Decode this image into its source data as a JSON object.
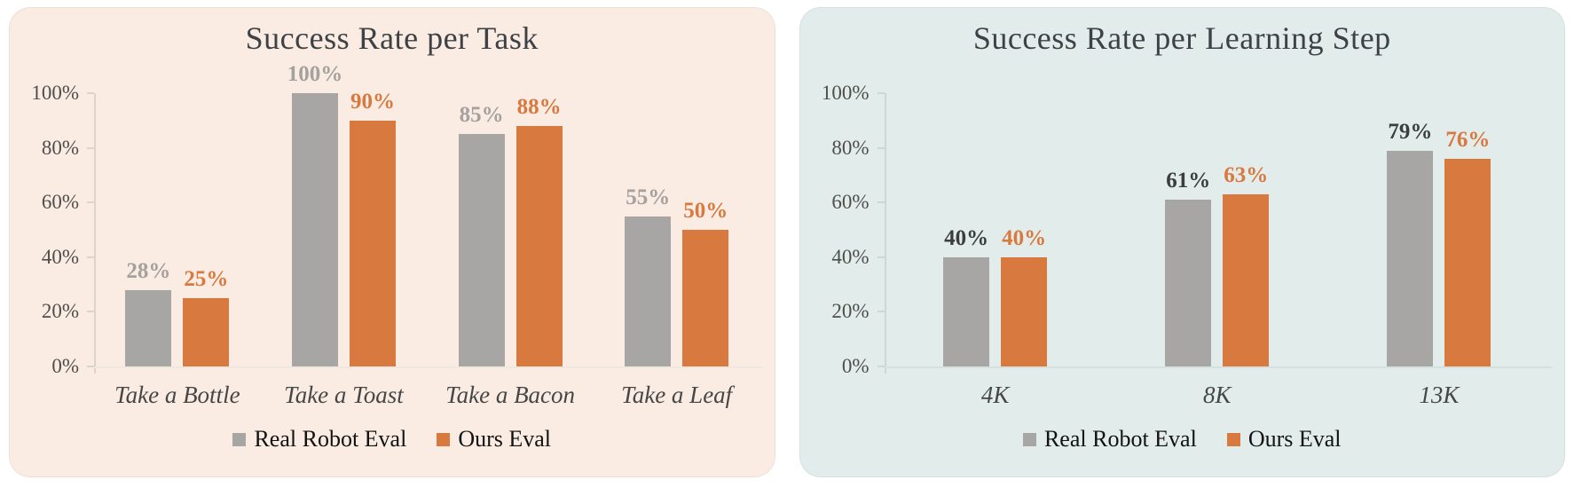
{
  "chart_data": [
    {
      "name": "success-rate-per-task",
      "type": "bar",
      "title": "Success Rate per Task",
      "panel_bg": "#FAECE3",
      "axis_color": "#DBD4CE",
      "baseline_color": "#EFE8E1",
      "categories": [
        "Take a Bottle",
        "Take a Toast",
        "Take a Bacon",
        "Take a Leaf"
      ],
      "series": [
        {
          "name": "Real Robot Eval",
          "values": [
            28,
            100,
            85,
            55
          ],
          "bar_color": "#A8A6A5",
          "label_color": "#A5A19E"
        },
        {
          "name": "Ours Eval",
          "values": [
            25,
            90,
            88,
            50
          ],
          "bar_color": "#D8793F",
          "label_color": "#D8793F"
        }
      ],
      "value_suffix": "%",
      "ylim": [
        0,
        100
      ],
      "y_tick_step": 20,
      "y_tick_labels": [
        "0%",
        "20%",
        "40%",
        "60%",
        "80%",
        "100%"
      ],
      "grid": false,
      "legend_position": "bottom",
      "legend": [
        {
          "label": "Real Robot Eval",
          "color": "#A8A6A5"
        },
        {
          "label": "Ours Eval",
          "color": "#D8793F"
        }
      ]
    },
    {
      "name": "success-rate-per-learning-step",
      "type": "bar",
      "title": "Success Rate per Learning Step",
      "panel_bg": "#E2ECEA",
      "axis_color": "#CCD8D6",
      "baseline_color": "#D6E1DF",
      "categories": [
        "4K",
        "8K",
        "13K"
      ],
      "series": [
        {
          "name": "Real Robot Eval",
          "values": [
            40,
            61,
            79
          ],
          "bar_color": "#A8A6A5",
          "label_color": "#3B3D3F"
        },
        {
          "name": "Ours Eval",
          "values": [
            40,
            63,
            76
          ],
          "bar_color": "#D8793F",
          "label_color": "#D8793F"
        }
      ],
      "value_suffix": "%",
      "ylim": [
        0,
        100
      ],
      "y_tick_step": 20,
      "y_tick_labels": [
        "0%",
        "20%",
        "40%",
        "60%",
        "80%",
        "100%"
      ],
      "grid": false,
      "legend_position": "bottom",
      "legend": [
        {
          "label": "Real Robot Eval",
          "color": "#A8A6A5"
        },
        {
          "label": "Ours Eval",
          "color": "#D8793F"
        }
      ]
    }
  ]
}
